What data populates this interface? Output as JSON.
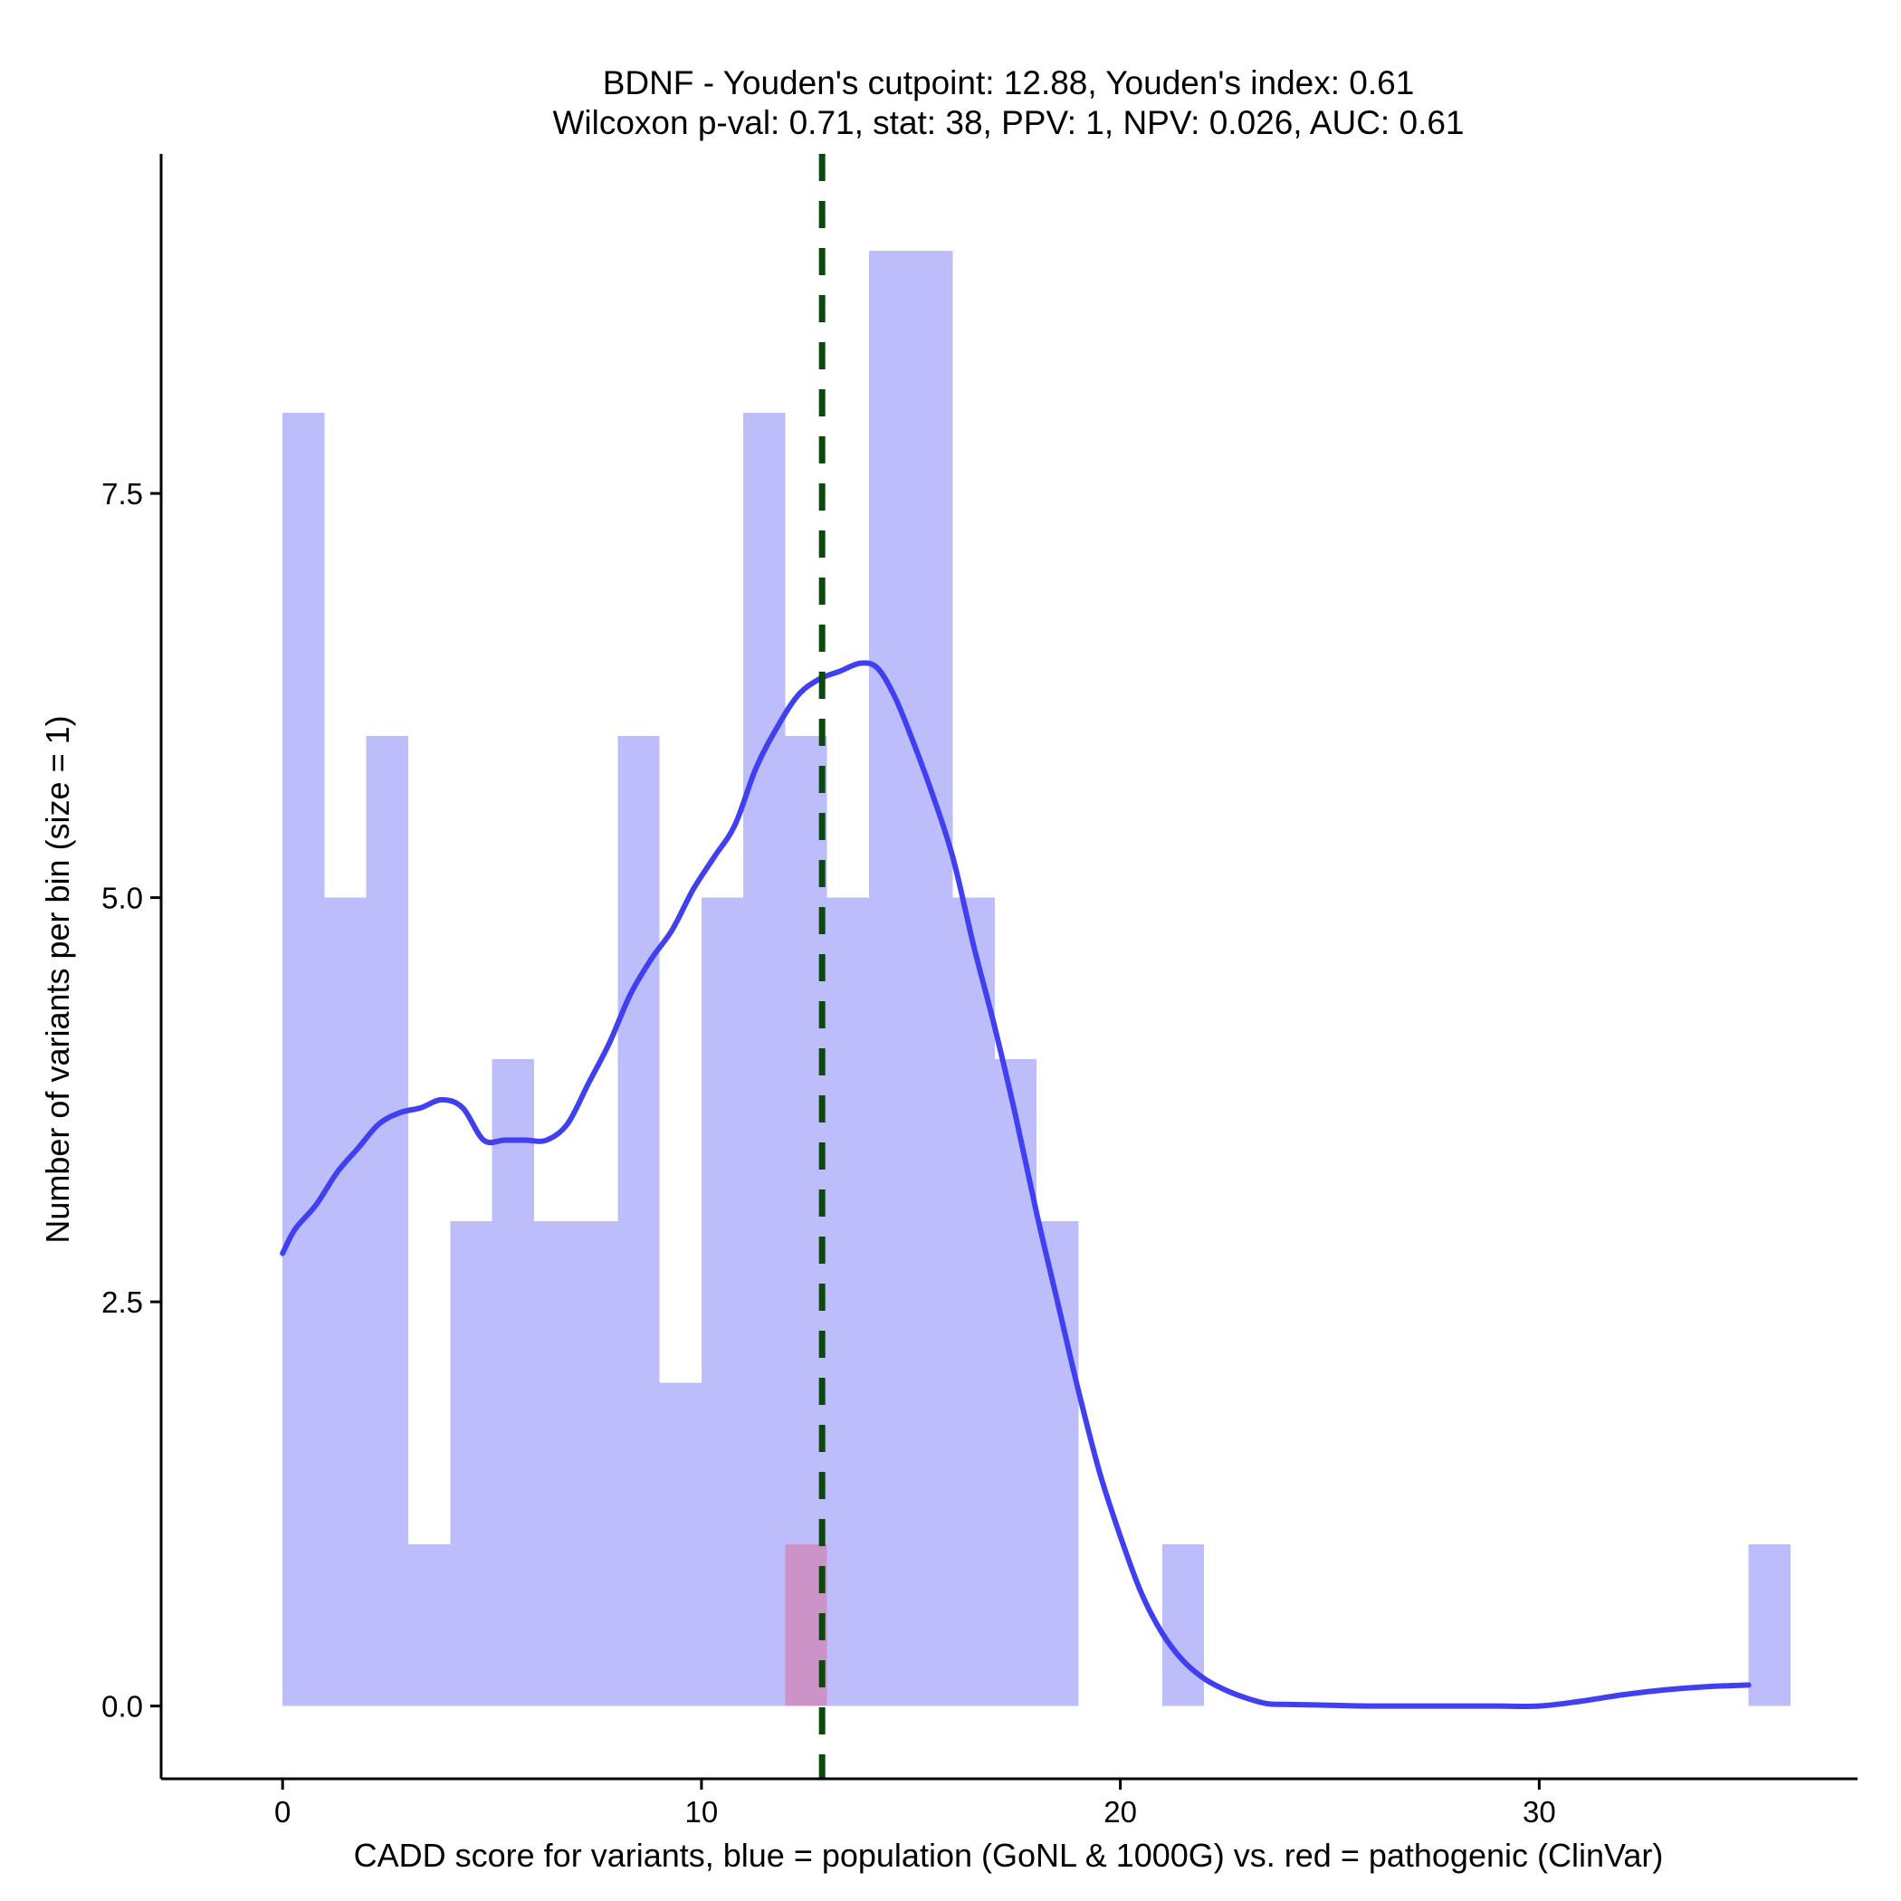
{
  "chart_data": {
    "type": "histogram",
    "title_line1": "BDNF - Youden's cutpoint: 12.88, Youden's index: 0.61",
    "title_line2": "Wilcoxon p-val: 0.71, stat: 38, PPV: 1, NPV: 0.026, AUC: 0.61",
    "xlabel": "CADD score for variants, blue = population (GoNL & 1000G) vs. red = pathogenic (ClinVar)",
    "ylabel": "Number of variants per bin (size = 1)",
    "xlim": [
      -2.9,
      37.6
    ],
    "ylim": [
      -0.45,
      9.6
    ],
    "x_ticks": [
      0,
      10,
      20,
      30
    ],
    "x_tick_labels": [
      "0",
      "10",
      "20",
      "30"
    ],
    "y_ticks": [
      0,
      2.5,
      5,
      7.5
    ],
    "y_tick_labels": [
      "0.0",
      "2.5",
      "5.0",
      "7.5"
    ],
    "bin_width": 1,
    "colors": {
      "population_bars": "#bdbdfc",
      "pathogenic_bars": "#cc93c8",
      "density_line": "#4040f0",
      "cutpoint_line": "#0b4a0b"
    },
    "series": [
      {
        "name": "population (GoNL & 1000G)",
        "bin_starts": [
          0,
          1,
          2,
          3,
          4,
          5,
          6,
          7,
          8,
          9,
          10,
          11,
          12,
          13,
          14,
          15,
          16,
          17,
          18,
          19,
          20,
          21,
          22,
          23,
          24,
          25,
          26,
          27,
          28,
          29,
          30,
          31,
          32,
          33,
          34,
          35
        ],
        "counts": [
          8,
          5,
          6,
          1,
          3,
          4,
          3,
          3,
          6,
          2,
          5,
          8,
          6,
          5,
          9,
          9,
          5,
          4,
          3,
          0,
          0,
          1,
          0,
          0,
          0,
          0,
          0,
          0,
          0,
          0,
          0,
          0,
          0,
          0,
          0,
          1
        ]
      },
      {
        "name": "pathogenic (ClinVar)",
        "bin_starts": [
          12
        ],
        "counts": [
          1
        ]
      }
    ],
    "density_curve": {
      "x": [
        0,
        0.3,
        0.8,
        1.3,
        1.8,
        2.3,
        2.8,
        3.3,
        3.8,
        4.3,
        4.8,
        5.3,
        5.8,
        6.3,
        6.8,
        7.3,
        7.8,
        8.3,
        8.8,
        9.3,
        9.8,
        10.3,
        10.8,
        11.3,
        11.8,
        12.3,
        12.8,
        13.3,
        13.8,
        14.2,
        14.6,
        15.0,
        15.5,
        16.0,
        16.5,
        17.0,
        17.5,
        18.0,
        18.5,
        19.0,
        19.5,
        20.0,
        20.5,
        21.0,
        21.5,
        22.0,
        22.5,
        23.0,
        23.5,
        24.0,
        25.0,
        26.0,
        27.0,
        28.0,
        29.0,
        30.0,
        31.0,
        32.0,
        33.0,
        34.0,
        35.0
      ],
      "y": [
        2.8,
        2.95,
        3.1,
        3.3,
        3.45,
        3.6,
        3.67,
        3.7,
        3.75,
        3.7,
        3.5,
        3.5,
        3.5,
        3.5,
        3.6,
        3.85,
        4.1,
        4.4,
        4.62,
        4.8,
        5.05,
        5.25,
        5.45,
        5.8,
        6.05,
        6.25,
        6.35,
        6.4,
        6.45,
        6.42,
        6.25,
        6.0,
        5.65,
        5.25,
        4.7,
        4.2,
        3.65,
        3.05,
        2.5,
        1.95,
        1.45,
        1.05,
        0.7,
        0.45,
        0.28,
        0.17,
        0.1,
        0.05,
        0.015,
        0.01,
        0.005,
        0.0,
        0.0,
        0.0,
        0.0,
        0.0,
        0.03,
        0.07,
        0.1,
        0.12,
        0.13
      ]
    },
    "cutpoint": 12.88,
    "grid": false,
    "legend": "none"
  }
}
